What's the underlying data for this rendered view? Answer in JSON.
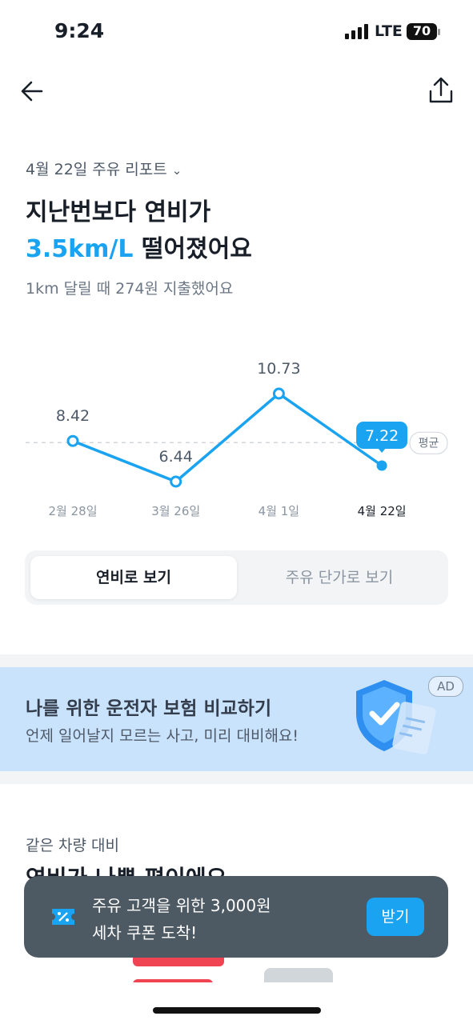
{
  "status_bar": {
    "time": "9:24",
    "network": "LTE",
    "battery": "70"
  },
  "report": {
    "date_selector": "4월 22일 주유 리포트",
    "headline_line1": "지난번보다 연비가",
    "headline_highlight": "3.5km/L",
    "headline_rest": "떨어졌어요",
    "subtitle": "1km 달릴 때 274원 지출했어요"
  },
  "chart_data": {
    "type": "line",
    "categories": [
      "2월 28일",
      "3월 26일",
      "4월 1일",
      "4월 22일"
    ],
    "values": [
      8.42,
      6.44,
      10.73,
      7.22
    ],
    "color": "#1aa3f0",
    "average": 8.34,
    "average_label": "평균"
  },
  "toggle": {
    "options": [
      "연비로 보기",
      "주유 단가로 보기"
    ],
    "selected": 0
  },
  "ad": {
    "badge": "AD",
    "title": "나를 위한 운전자 보험 비교하기",
    "text": "언제 일어날지 모르는 사고, 미리 대비해요!"
  },
  "comparison": {
    "label": "같은 차량 대비",
    "title": "연비가 나쁜 편이에요"
  },
  "toast": {
    "line1": "주유 고객을 위한 3,000원",
    "line2": "세차 쿠폰 도착!",
    "button": "받기"
  }
}
